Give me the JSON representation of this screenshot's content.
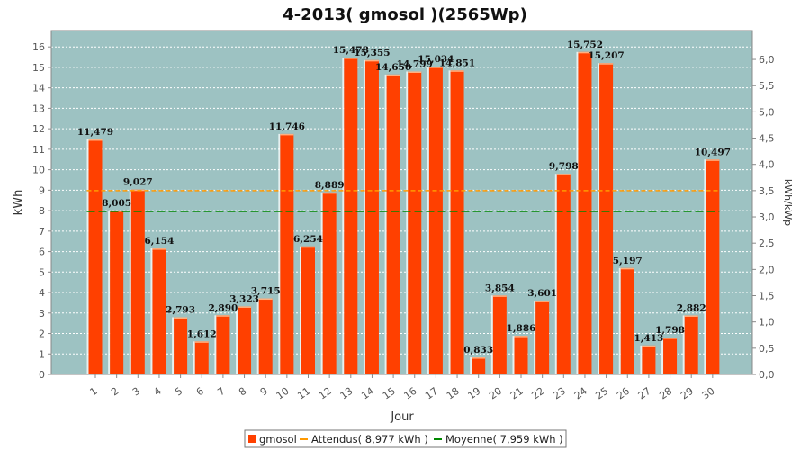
{
  "chart_data": {
    "type": "bar",
    "title": "4-2013( gmosol )(2565Wp)",
    "xlabel": "Jour",
    "ylabel": "kWh",
    "ylabel_right": "kWh/kWp",
    "ylim": [
      0,
      16.8
    ],
    "y_ticks": [
      "0",
      "1",
      "2",
      "3",
      "4",
      "5",
      "6",
      "7",
      "8",
      "9",
      "10",
      "11",
      "12",
      "13",
      "14",
      "15",
      "16"
    ],
    "y_right_ticks": [
      "0,0",
      "0,5",
      "1,0",
      "1,5",
      "2,0",
      "2,5",
      "3,0",
      "3,5",
      "4,0",
      "4,5",
      "5,0",
      "5,5",
      "6,0"
    ],
    "grid": true,
    "legend_position": "bottom",
    "categories": [
      "1",
      "2",
      "3",
      "4",
      "5",
      "6",
      "7",
      "8",
      "9",
      "10",
      "11",
      "12",
      "13",
      "14",
      "15",
      "16",
      "17",
      "18",
      "19",
      "20",
      "21",
      "22",
      "23",
      "24",
      "25",
      "26",
      "27",
      "28",
      "29",
      "30"
    ],
    "series": [
      {
        "name": "gmosol",
        "values": [
          11.479,
          8.005,
          9.027,
          6.154,
          2.793,
          1.612,
          2.89,
          3.323,
          3.715,
          11.746,
          6.254,
          8.889,
          15.478,
          15.355,
          14.65,
          14.799,
          15.034,
          14.851,
          0.833,
          3.854,
          1.886,
          3.601,
          9.798,
          15.752,
          15.207,
          5.197,
          1.413,
          1.798,
          2.882,
          10.497
        ],
        "labels": [
          "11,479",
          "8,005",
          "9,027",
          "6,154",
          "2,793",
          "1,612",
          "2,890",
          "3,323",
          "3,715",
          "11,746",
          "6,254",
          "8,889",
          "15,478",
          "15,355",
          "14,650",
          "14,799",
          "15,034",
          "14,851",
          "0,833",
          "3,854",
          "1,886",
          "3,601",
          "9,798",
          "15,752",
          "15,207",
          "5,197",
          "1,413",
          "1,798",
          "2,882",
          "10,497"
        ],
        "color": "#ff4000"
      }
    ],
    "reference_lines": [
      {
        "name": "Attendus( 8,977 kWh )",
        "value": 8.977,
        "color": "#ff9900",
        "style": "dashed"
      },
      {
        "name": "Moyenne( 7,959 kWh )",
        "value": 7.959,
        "color": "#008800",
        "style": "dashed"
      }
    ],
    "plot_background": "#9dc2c2",
    "grid_color": "#ffffff"
  }
}
